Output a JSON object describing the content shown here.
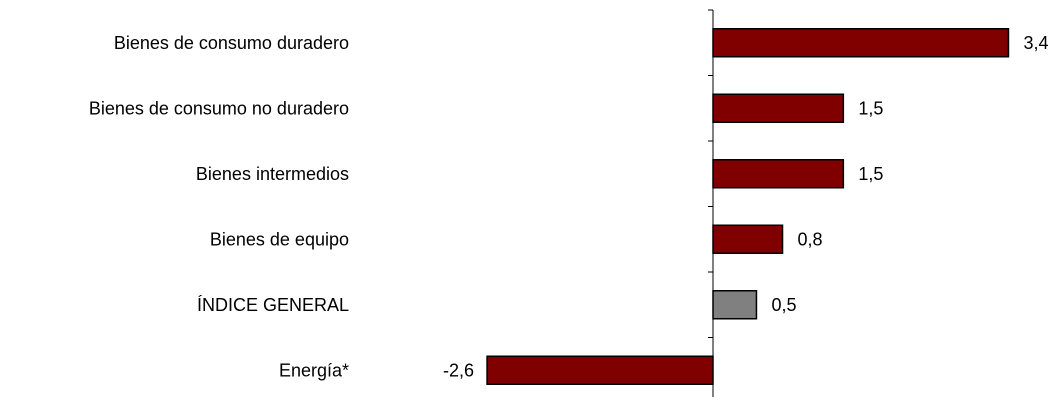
{
  "chart_data": {
    "type": "bar",
    "orientation": "horizontal",
    "title": "",
    "xlabel": "",
    "ylabel": "",
    "categories": [
      "Bienes de consumo duradero",
      "Bienes de consumo no duradero",
      "Bienes intermedios",
      "Bienes de equipo",
      "ÍNDICE GENERAL",
      "Energía*"
    ],
    "values": [
      3.4,
      1.5,
      1.5,
      0.8,
      0.5,
      -2.6
    ],
    "value_labels": [
      "3,4",
      "1,5",
      "1,5",
      "0,8",
      "0,5",
      "-2,6"
    ],
    "colors": [
      "#800000",
      "#800000",
      "#800000",
      "#800000",
      "#808080",
      "#800000"
    ],
    "xlim": [
      -2.6,
      3.4
    ],
    "grid": false,
    "legend": "none"
  }
}
